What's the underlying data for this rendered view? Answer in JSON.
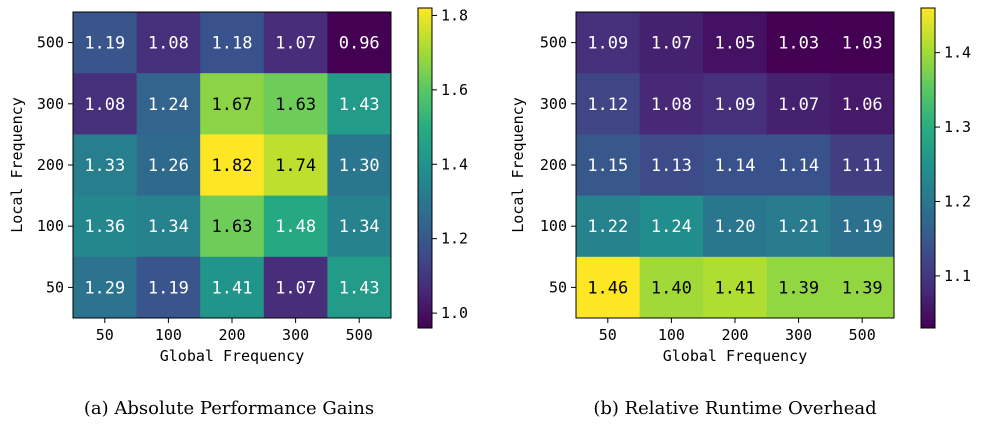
{
  "chart_data": [
    {
      "type": "heatmap",
      "caption": "(a) Absolute Performance Gains",
      "xlabel": "Global Frequency",
      "ylabel": "Local Frequency",
      "x_categories": [
        "50",
        "100",
        "200",
        "300",
        "500"
      ],
      "y_categories": [
        "500",
        "300",
        "200",
        "100",
        "50"
      ],
      "values": [
        [
          1.19,
          1.08,
          1.18,
          1.07,
          0.96
        ],
        [
          1.08,
          1.24,
          1.67,
          1.63,
          1.43
        ],
        [
          1.33,
          1.26,
          1.82,
          1.74,
          1.3
        ],
        [
          1.36,
          1.34,
          1.63,
          1.48,
          1.34
        ],
        [
          1.29,
          1.19,
          1.41,
          1.07,
          1.43
        ]
      ],
      "labels": [
        [
          "1.19",
          "1.08",
          "1.18",
          "1.07",
          "0.96"
        ],
        [
          "1.08",
          "1.24",
          "1.67",
          "1.63",
          "1.43"
        ],
        [
          "1.33",
          "1.26",
          "1.82",
          "1.74",
          "1.30"
        ],
        [
          "1.36",
          "1.34",
          "1.63",
          "1.48",
          "1.34"
        ],
        [
          "1.29",
          "1.19",
          "1.41",
          "1.07",
          "1.43"
        ]
      ],
      "colormap": "viridis",
      "vmin": 0.96,
      "vmax": 1.82,
      "colorbar_ticks": [
        1.0,
        1.2,
        1.4,
        1.6,
        1.8
      ],
      "colorbar_tick_labels": [
        "1.0",
        "1.2",
        "1.4",
        "1.6",
        "1.8"
      ]
    },
    {
      "type": "heatmap",
      "caption": "(b) Relative Runtime Overhead",
      "xlabel": "Global Frequency",
      "ylabel": "Local Frequency",
      "x_categories": [
        "50",
        "100",
        "200",
        "300",
        "500"
      ],
      "y_categories": [
        "500",
        "300",
        "200",
        "100",
        "50"
      ],
      "values": [
        [
          1.09,
          1.07,
          1.05,
          1.03,
          1.03
        ],
        [
          1.12,
          1.08,
          1.09,
          1.07,
          1.06
        ],
        [
          1.15,
          1.13,
          1.14,
          1.14,
          1.11
        ],
        [
          1.22,
          1.24,
          1.2,
          1.21,
          1.19
        ],
        [
          1.46,
          1.4,
          1.41,
          1.39,
          1.39
        ]
      ],
      "labels": [
        [
          "1.09",
          "1.07",
          "1.05",
          "1.03",
          "1.03"
        ],
        [
          "1.12",
          "1.08",
          "1.09",
          "1.07",
          "1.06"
        ],
        [
          "1.15",
          "1.13",
          "1.14",
          "1.14",
          "1.11"
        ],
        [
          "1.22",
          "1.24",
          "1.20",
          "1.21",
          "1.19"
        ],
        [
          "1.46",
          "1.40",
          "1.41",
          "1.39",
          "1.39"
        ]
      ],
      "colormap": "viridis",
      "vmin": 1.03,
      "vmax": 1.46,
      "colorbar_ticks": [
        1.1,
        1.2,
        1.3,
        1.4
      ],
      "colorbar_tick_labels": [
        "1.1",
        "1.2",
        "1.3",
        "1.4"
      ]
    }
  ]
}
